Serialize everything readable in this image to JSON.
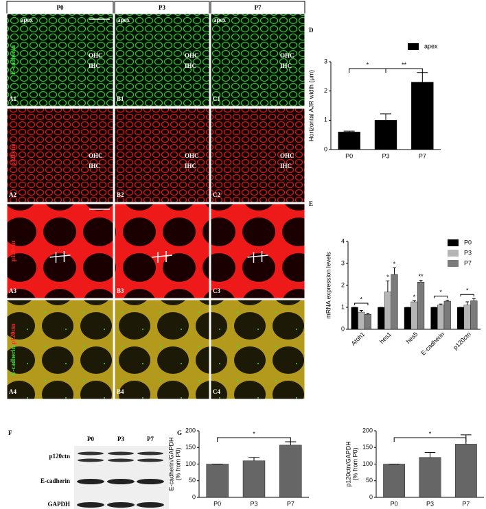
{
  "figure": {
    "panels": [
      "D",
      "E",
      "F",
      "G"
    ],
    "microscopy": {
      "columns": [
        "P0",
        "P3",
        "P7"
      ],
      "rows": [
        {
          "stain": [
            {
              "text": "E-cadherin",
              "color": "#3ddc3d"
            }
          ],
          "region": "apex",
          "labels": [
            "OHC",
            "IHC"
          ],
          "cells": [
            "A1",
            "B1",
            "C1"
          ],
          "texture": "green"
        },
        {
          "stain": [
            {
              "text": "p120ctn",
              "color": "#ff2a2a"
            }
          ],
          "labels": [
            "OHC",
            "IHC"
          ],
          "cells": [
            "A2",
            "B2",
            "C2"
          ],
          "texture": "red"
        },
        {
          "stain": [
            {
              "text": "p120ctn",
              "color": "#ff2a2a"
            }
          ],
          "cells": [
            "A3",
            "B3",
            "C3"
          ],
          "texture": "redbig"
        },
        {
          "stain": [
            {
              "text": "E-cadherin/",
              "color": "#3ddc3d"
            },
            {
              "text": "p120ctn",
              "color": "#ff2a2a"
            }
          ],
          "cells": [
            "A4",
            "B4",
            "C4"
          ],
          "texture": "yellow"
        }
      ]
    },
    "blot": {
      "columns": [
        "P0",
        "P3",
        "P7"
      ],
      "rows": [
        "p120ctn",
        "E-cadherin",
        "GAPDH"
      ]
    }
  },
  "chart_data": [
    {
      "type": "bar",
      "ylabel": "Horizontal AJR width (μm)",
      "categories": [
        "P0",
        "P3",
        "P7"
      ],
      "values": [
        0.6,
        1.0,
        2.3
      ],
      "errors": [
        0.03,
        0.22,
        0.33
      ],
      "color": "#000000",
      "series_name": "apex",
      "legend": "upper right",
      "ylim": [
        0,
        3
      ],
      "yticks": [
        0,
        1,
        2,
        3
      ],
      "annotations": [
        {
          "label": "*",
          "between": [
            0,
            1
          ]
        },
        {
          "label": "**",
          "between": [
            1,
            2
          ]
        }
      ]
    },
    {
      "type": "bar",
      "ylabel": "mRNA expression levels",
      "categories": [
        "Atoh1",
        "hes1",
        "hes5",
        "E-cadherin",
        "p120ctn"
      ],
      "xtick_rotation": 45,
      "legend": "upper right",
      "ylim": [
        0,
        4
      ],
      "yticks": [
        0,
        1,
        2,
        3,
        4
      ],
      "series": [
        {
          "name": "P0",
          "color": "#000000",
          "values": [
            1,
            1,
            1,
            1,
            1
          ],
          "errors": [
            0,
            0,
            0,
            0,
            0
          ]
        },
        {
          "name": "P3",
          "color": "#b5b5b5",
          "values": [
            0.78,
            1.7,
            1.25,
            1.1,
            1.1
          ],
          "errors": [
            0.08,
            0.5,
            0.05,
            0.05,
            0.15
          ]
        },
        {
          "name": "P7",
          "color": "#7a7a7a",
          "values": [
            0.68,
            2.5,
            2.15,
            1.28,
            1.3
          ],
          "errors": [
            0.05,
            0.3,
            0.08,
            0.04,
            0.1
          ]
        }
      ],
      "annotations": [
        {
          "label": "*",
          "category": 0
        },
        {
          "label": "*",
          "category": 1,
          "series": 1
        },
        {
          "label": "*",
          "category": 1,
          "series": 2
        },
        {
          "label": "*",
          "category": 2,
          "series": 1
        },
        {
          "label": "**",
          "category": 2,
          "series": 2
        },
        {
          "label": "*",
          "category": 3
        },
        {
          "label": "*",
          "category": 4
        }
      ]
    },
    {
      "type": "bar",
      "ylabel": [
        "E-cadherin/GAPDH",
        "(% from P0)"
      ],
      "categories": [
        "P0",
        "P3",
        "P7"
      ],
      "values": [
        100,
        110,
        157
      ],
      "errors": [
        0,
        10,
        10
      ],
      "color": "#666666",
      "ylim": [
        0,
        200
      ],
      "yticks": [
        0,
        50,
        100,
        150,
        200
      ],
      "annotations": [
        {
          "label": "*",
          "between": [
            0,
            2
          ]
        }
      ]
    },
    {
      "type": "bar",
      "ylabel": [
        "p120ctn/GAPDH",
        "(% from P0)"
      ],
      "categories": [
        "P0",
        "P3",
        "P7"
      ],
      "values": [
        100,
        120,
        160
      ],
      "errors": [
        0,
        15,
        28
      ],
      "color": "#666666",
      "ylim": [
        0,
        200
      ],
      "yticks": [
        0,
        50,
        100,
        150,
        200
      ],
      "annotations": [
        {
          "label": "*",
          "between": [
            0,
            2
          ]
        }
      ]
    }
  ]
}
